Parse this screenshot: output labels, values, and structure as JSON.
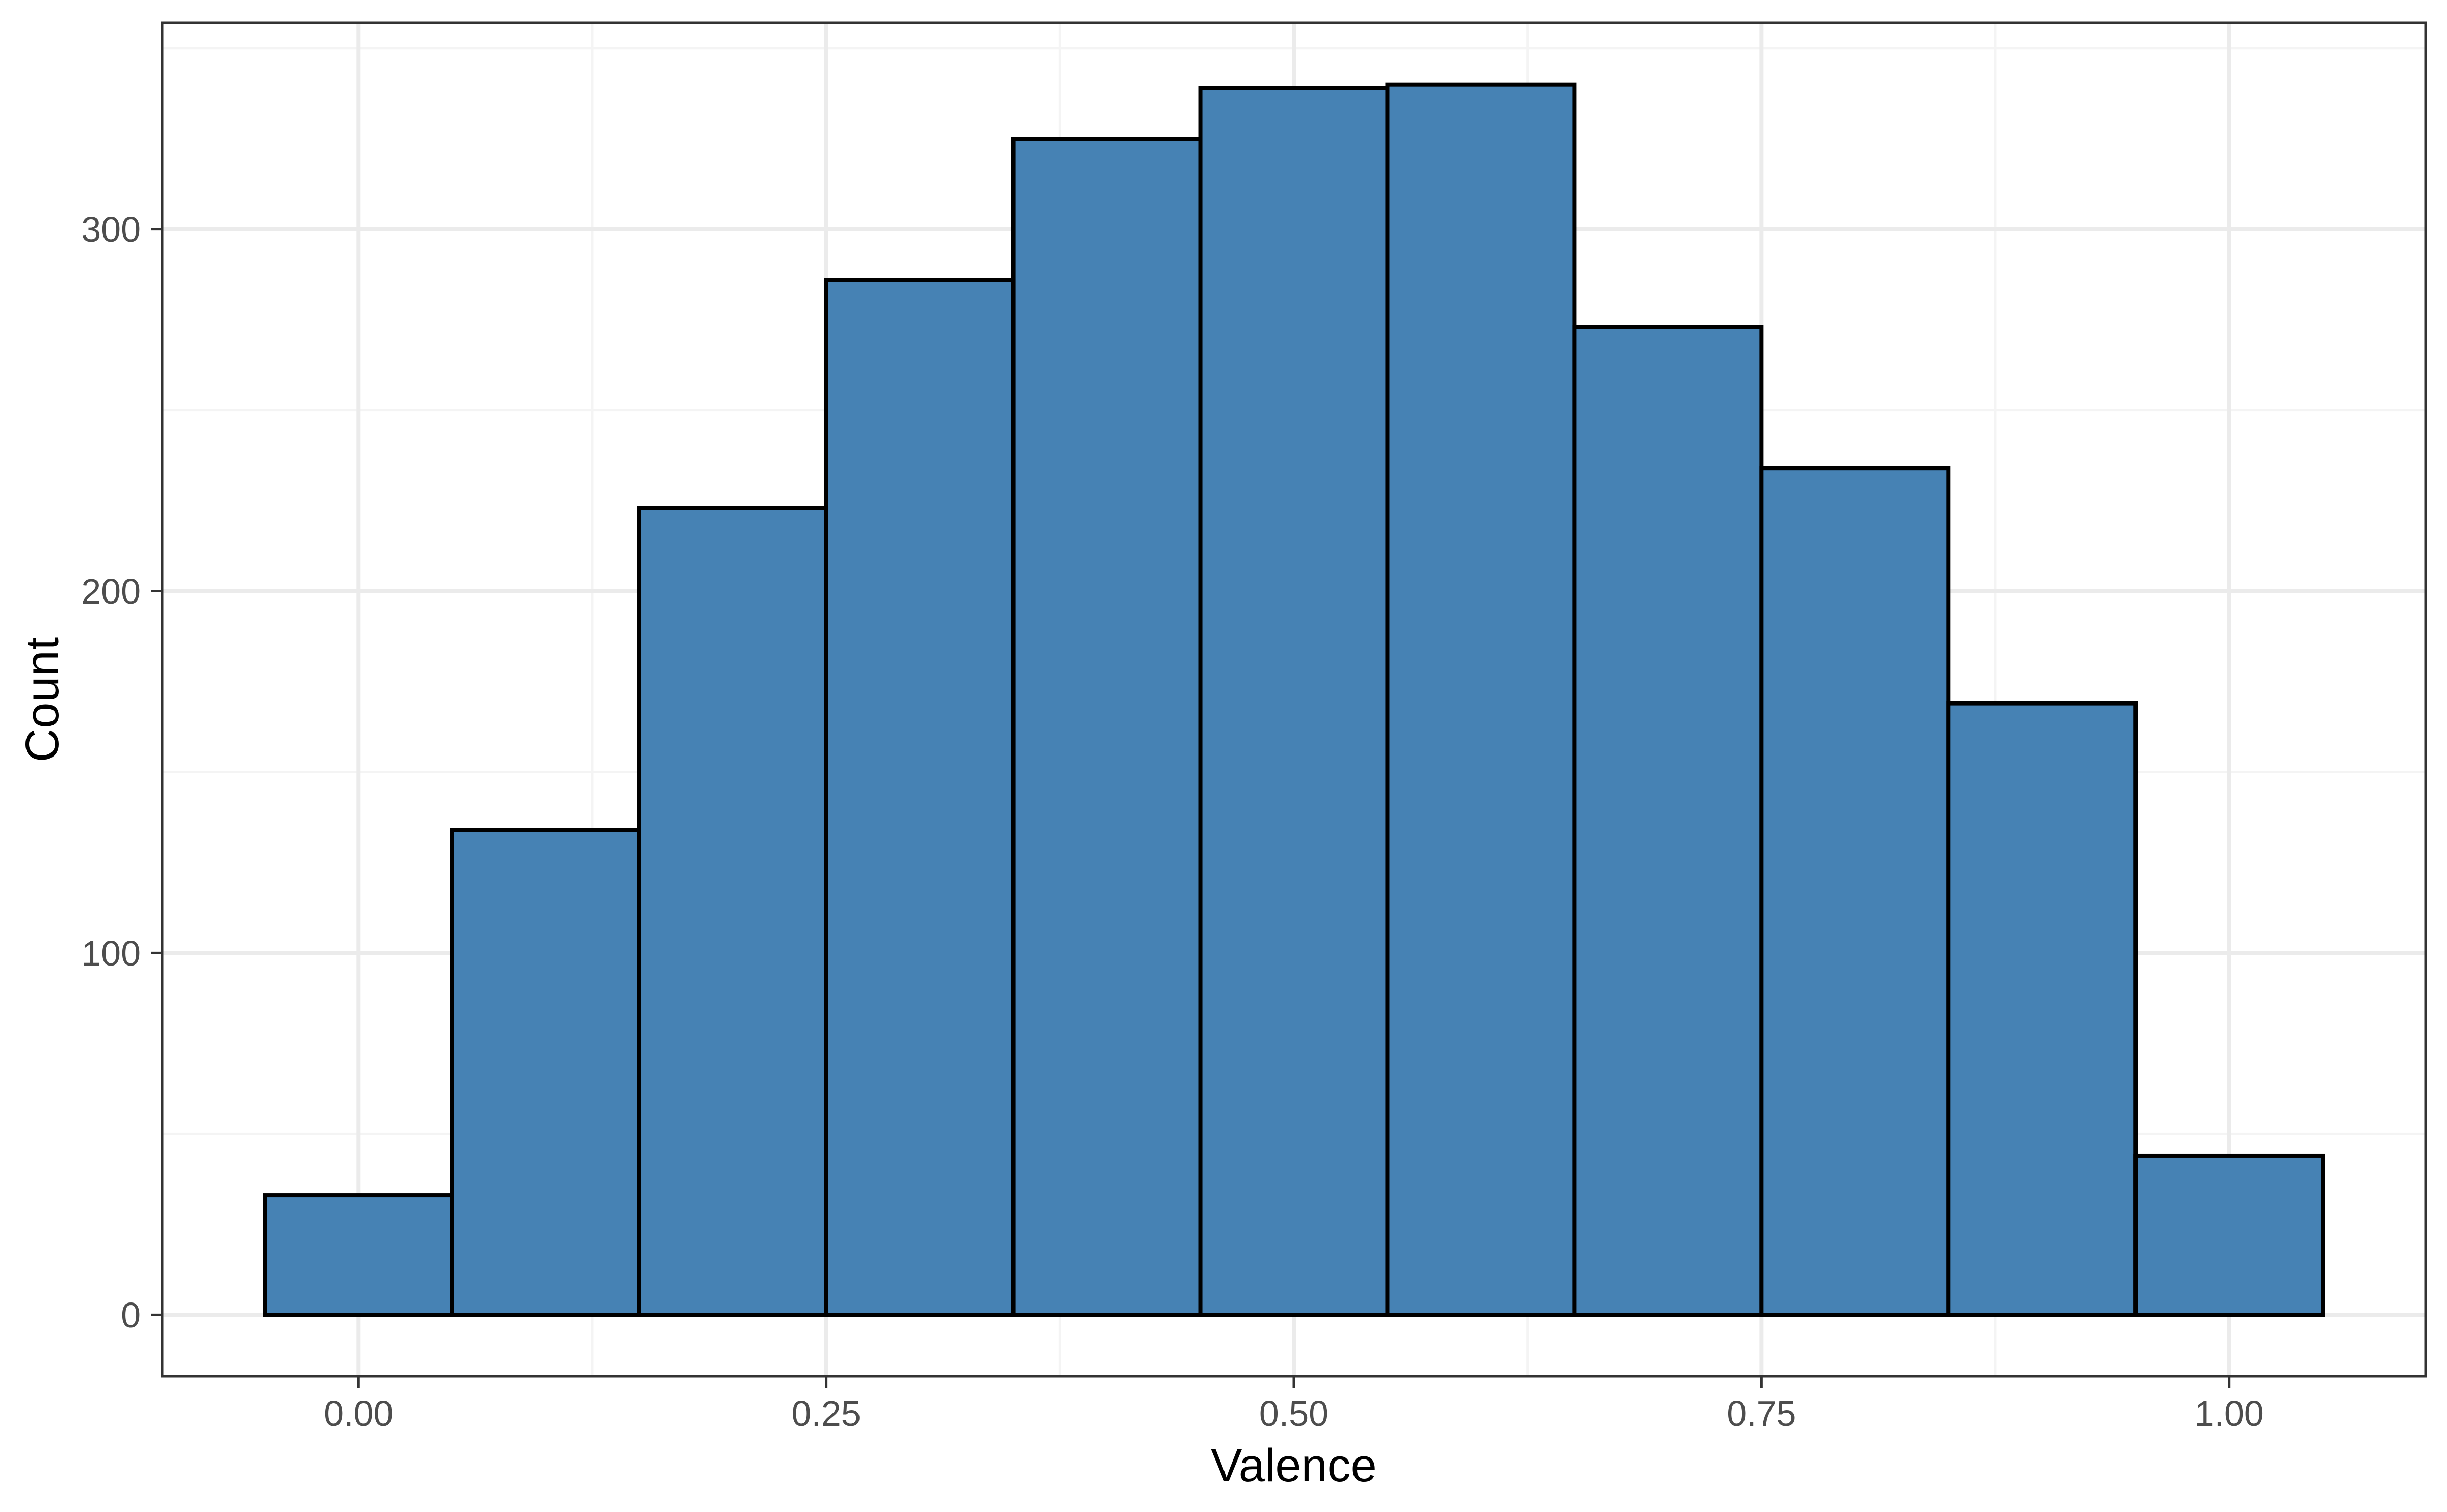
{
  "chart_data": {
    "type": "bar",
    "subtype": "histogram",
    "title": "",
    "xlabel": "Valence",
    "ylabel": "Count",
    "bin_width": 0.1,
    "bin_centers": [
      0.0,
      0.1,
      0.2,
      0.3,
      0.4,
      0.5,
      0.6,
      0.7,
      0.8,
      0.9,
      1.0
    ],
    "counts": [
      33,
      134,
      223,
      286,
      325,
      339,
      340,
      273,
      234,
      169,
      44
    ],
    "total_n": 2400,
    "x_ticks": {
      "values": [
        0.0,
        0.25,
        0.5,
        0.75,
        1.0
      ],
      "labels": [
        "0.00",
        "0.25",
        "0.50",
        "0.75",
        "1.00"
      ]
    },
    "y_ticks": {
      "values": [
        0,
        100,
        200,
        300
      ],
      "labels": [
        "0",
        "100",
        "200",
        "300"
      ]
    },
    "x_minor": [
      0.125,
      0.375,
      0.625,
      0.875
    ],
    "y_minor": [
      50,
      150,
      250,
      350
    ],
    "xlim": [
      -0.105,
      1.105
    ],
    "ylim": [
      -17,
      357
    ],
    "grid": "on",
    "legend": "none",
    "colors": {
      "bar_fill": "#4682B4",
      "bar_stroke": "#000000",
      "grid_major": "#EBEBEB",
      "grid_minor": "#F4F4F4",
      "panel_border": "#333333",
      "tick_mark": "#333333",
      "tick_label": "#4D4D4D",
      "axis_title": "#000000",
      "background": "#FFFFFF"
    }
  }
}
